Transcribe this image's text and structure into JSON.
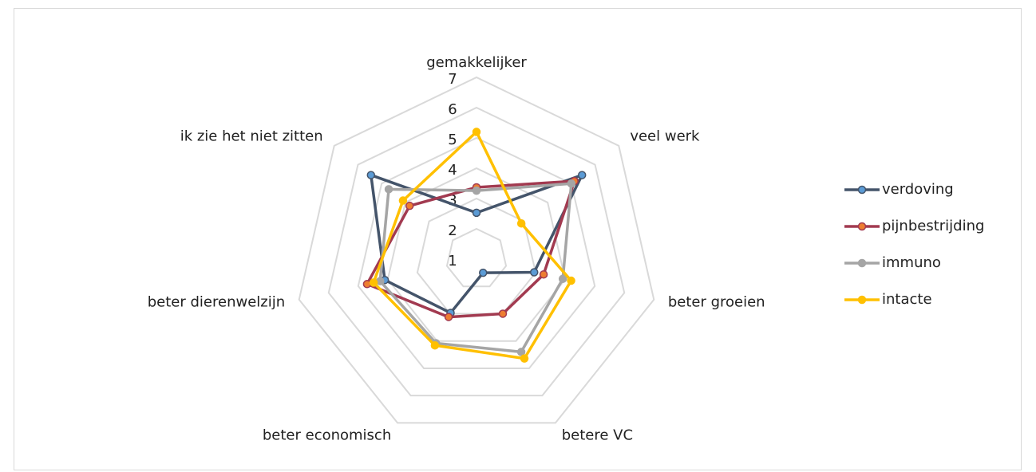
{
  "chart_data": {
    "type": "radar",
    "categories": [
      "gemakkelijker",
      "veel werk",
      "beter groeien",
      "betere VC",
      "beter economisch",
      "beter dierenwelzijn",
      "ik zie het niet zitten"
    ],
    "series": [
      {
        "name": "verdoving",
        "color": "#44546a",
        "marker_color": "#5b9bd5",
        "values": [
          2.53,
          5.45,
          2.95,
          1.5,
          2.97,
          4.1,
          5.45
        ]
      },
      {
        "name": "pijnbestrijding",
        "color": "#a23a50",
        "marker_color": "#ed7d31",
        "values": [
          3.37,
          5.13,
          3.27,
          3.0,
          3.12,
          4.7,
          3.82
        ]
      },
      {
        "name": "immuno",
        "color": "#a5a5a5",
        "marker_color": "#a5a5a5",
        "values": [
          3.26,
          5.0,
          3.92,
          4.4,
          4.08,
          4.26,
          4.7
        ]
      },
      {
        "name": "intacte",
        "color": "#ffc000",
        "marker_color": "#ffc000",
        "values": [
          5.2,
          2.89,
          4.2,
          4.64,
          4.16,
          4.48,
          4.1
        ]
      }
    ],
    "ylim": [
      1,
      7
    ],
    "yticks": [
      1,
      2,
      3,
      4,
      5,
      6,
      7
    ],
    "grid": true,
    "legend": "right"
  }
}
